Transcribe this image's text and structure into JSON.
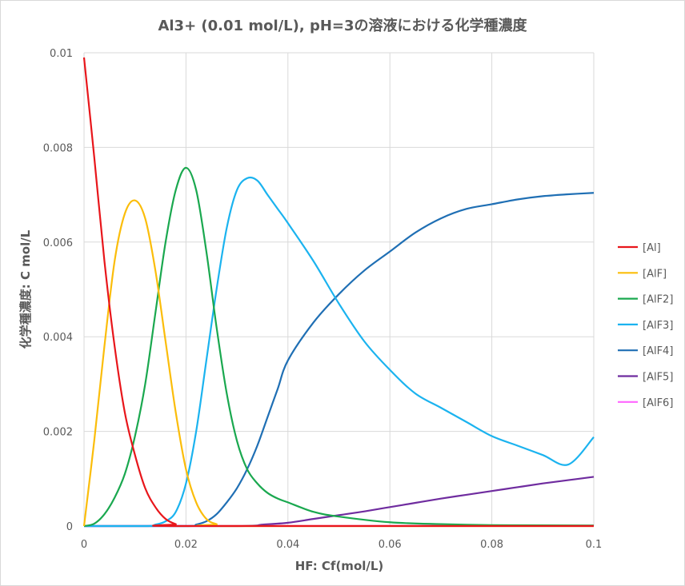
{
  "chart_data": {
    "type": "line",
    "title": "Al3+ (0.01 mol/L), pH=3の溶液における化学種濃度",
    "xlabel": "HF: Cf(mol/L)",
    "ylabel": "化学種濃度: C mol/L",
    "xlim": [
      0,
      0.1
    ],
    "ylim": [
      0,
      0.01
    ],
    "x_ticks": [
      "0",
      "0.02",
      "0.04",
      "0.06",
      "0.08",
      "0.1"
    ],
    "y_ticks": [
      "0",
      "0.002",
      "0.004",
      "0.006",
      "0.008",
      "0.01"
    ],
    "grid": true,
    "legend_position": "right",
    "series": [
      {
        "name": "[Al]",
        "color": "#e8161b",
        "points": [
          [
            0,
            0.0099
          ],
          [
            0.002,
            0.0078
          ],
          [
            0.004,
            0.0056
          ],
          [
            0.006,
            0.0038
          ],
          [
            0.008,
            0.0024
          ],
          [
            0.01,
            0.0015
          ],
          [
            0.012,
            0.0008
          ],
          [
            0.014,
            0.0004
          ],
          [
            0.016,
            0.00015
          ],
          [
            0.018,
            4e-05
          ],
          [
            0.02,
            0.0
          ],
          [
            0.1,
            0.0
          ]
        ]
      },
      {
        "name": "[AlF]",
        "color": "#fbbd0a",
        "points": [
          [
            0,
            0.0
          ],
          [
            0.002,
            0.0018
          ],
          [
            0.004,
            0.0038
          ],
          [
            0.006,
            0.0056
          ],
          [
            0.008,
            0.0066
          ],
          [
            0.01,
            0.00688
          ],
          [
            0.012,
            0.0065
          ],
          [
            0.014,
            0.0054
          ],
          [
            0.016,
            0.0039
          ],
          [
            0.018,
            0.0024
          ],
          [
            0.02,
            0.0012
          ],
          [
            0.022,
            0.0005
          ],
          [
            0.024,
            0.00015
          ],
          [
            0.026,
            4e-05
          ],
          [
            0.028,
            0.0
          ],
          [
            0.1,
            0.0
          ]
        ]
      },
      {
        "name": "[AlF2]",
        "color": "#1aa84f",
        "points": [
          [
            0,
            0.0
          ],
          [
            0.002,
            5e-05
          ],
          [
            0.004,
            0.00025
          ],
          [
            0.006,
            0.0006
          ],
          [
            0.008,
            0.0011
          ],
          [
            0.01,
            0.0019
          ],
          [
            0.012,
            0.003
          ],
          [
            0.014,
            0.0045
          ],
          [
            0.016,
            0.006
          ],
          [
            0.018,
            0.0071
          ],
          [
            0.02,
            0.00757
          ],
          [
            0.022,
            0.0071
          ],
          [
            0.024,
            0.0058
          ],
          [
            0.026,
            0.0042
          ],
          [
            0.028,
            0.0028
          ],
          [
            0.03,
            0.0018
          ],
          [
            0.032,
            0.0012
          ],
          [
            0.034,
            0.0009
          ],
          [
            0.036,
            0.0007
          ],
          [
            0.038,
            0.00058
          ],
          [
            0.04,
            0.0005
          ],
          [
            0.045,
            0.0003
          ],
          [
            0.05,
            0.0002
          ],
          [
            0.06,
            8e-05
          ],
          [
            0.07,
            4e-05
          ],
          [
            0.08,
            2e-05
          ],
          [
            0.1,
            1e-05
          ]
        ]
      },
      {
        "name": "[AlF3]",
        "color": "#1bb3ef",
        "points": [
          [
            0,
            0.0
          ],
          [
            0.012,
            0.0
          ],
          [
            0.014,
            3e-05
          ],
          [
            0.016,
            0.0001
          ],
          [
            0.018,
            0.0003
          ],
          [
            0.02,
            0.0009
          ],
          [
            0.022,
            0.002
          ],
          [
            0.024,
            0.0035
          ],
          [
            0.026,
            0.005
          ],
          [
            0.028,
            0.0063
          ],
          [
            0.03,
            0.0071
          ],
          [
            0.032,
            0.00735
          ],
          [
            0.034,
            0.0073
          ],
          [
            0.036,
            0.007
          ],
          [
            0.038,
            0.0067
          ],
          [
            0.04,
            0.0064
          ],
          [
            0.045,
            0.0056
          ],
          [
            0.05,
            0.0047
          ],
          [
            0.055,
            0.0039
          ],
          [
            0.06,
            0.0033
          ],
          [
            0.065,
            0.0028
          ],
          [
            0.07,
            0.0025
          ],
          [
            0.075,
            0.0022
          ],
          [
            0.08,
            0.0019
          ],
          [
            0.085,
            0.0017
          ],
          [
            0.09,
            0.0015
          ],
          [
            0.095,
            0.0013
          ],
          [
            0.1,
            0.00188
          ]
        ]
      },
      {
        "name": "[AlF4]",
        "color": "#1f6fb4",
        "points": [
          [
            0,
            0.0
          ],
          [
            0.02,
            0.0
          ],
          [
            0.022,
            3e-05
          ],
          [
            0.024,
            0.0001
          ],
          [
            0.026,
            0.00025
          ],
          [
            0.028,
            0.0005
          ],
          [
            0.03,
            0.0008
          ],
          [
            0.032,
            0.0012
          ],
          [
            0.034,
            0.0017
          ],
          [
            0.036,
            0.0023
          ],
          [
            0.038,
            0.0029
          ],
          [
            0.04,
            0.0035
          ],
          [
            0.045,
            0.0043
          ],
          [
            0.05,
            0.0049
          ],
          [
            0.055,
            0.0054
          ],
          [
            0.06,
            0.0058
          ],
          [
            0.065,
            0.0062
          ],
          [
            0.07,
            0.0065
          ],
          [
            0.075,
            0.0067
          ],
          [
            0.08,
            0.0068
          ],
          [
            0.085,
            0.0069
          ],
          [
            0.09,
            0.00697
          ],
          [
            0.095,
            0.00701
          ],
          [
            0.1,
            0.00704
          ]
        ]
      },
      {
        "name": "[AlF5]",
        "color": "#6f2c9f",
        "points": [
          [
            0,
            0.0
          ],
          [
            0.03,
            0.0
          ],
          [
            0.035,
            3e-05
          ],
          [
            0.04,
            7e-05
          ],
          [
            0.045,
            0.00015
          ],
          [
            0.05,
            0.00023
          ],
          [
            0.055,
            0.00031
          ],
          [
            0.06,
            0.0004
          ],
          [
            0.065,
            0.00049
          ],
          [
            0.07,
            0.00058
          ],
          [
            0.075,
            0.00066
          ],
          [
            0.08,
            0.00074
          ],
          [
            0.085,
            0.00082
          ],
          [
            0.09,
            0.0009
          ],
          [
            0.095,
            0.00097
          ],
          [
            0.1,
            0.00104
          ]
        ]
      },
      {
        "name": "[AlF6]",
        "color": "#ff66ff",
        "points": [
          [
            0,
            0.0
          ],
          [
            0.1,
            1e-05
          ]
        ]
      }
    ]
  }
}
